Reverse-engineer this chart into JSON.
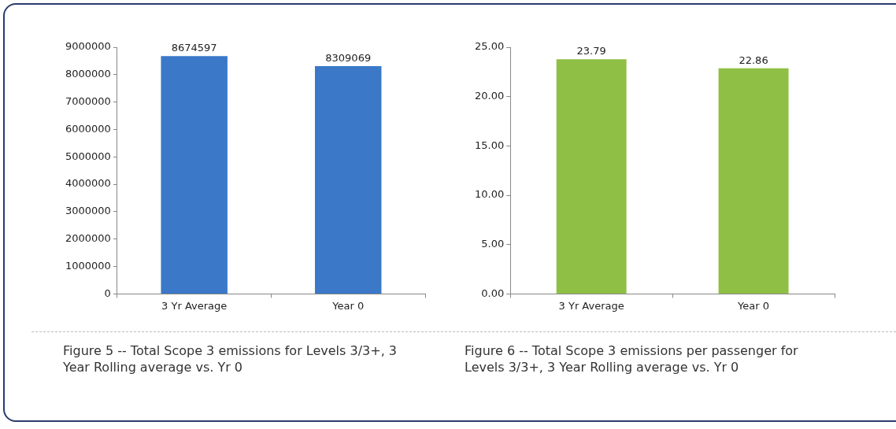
{
  "chart_data": [
    {
      "type": "bar",
      "categories": [
        "3 Yr Average",
        "Year 0"
      ],
      "values": [
        8674597,
        8309069
      ],
      "color": "#3b78c8",
      "ylim": [
        0,
        9000000
      ],
      "yticks": [
        0,
        1000000,
        2000000,
        3000000,
        4000000,
        5000000,
        6000000,
        7000000,
        8000000,
        9000000
      ],
      "data_labels": true,
      "annotations": [
        "Figure 5 -- Total Scope 3 emissions for Levels 3/3+, 3 Year Rolling average vs. Yr 0"
      ]
    },
    {
      "type": "bar",
      "categories": [
        "3 Yr Average",
        "Year 0"
      ],
      "values": [
        23.79,
        22.86
      ],
      "color": "#8fbf45",
      "ylim": [
        0,
        25
      ],
      "yticks": [
        {
          "value": 0,
          "label": "0.00"
        },
        {
          "value": 5,
          "label": "5.00"
        },
        {
          "value": 10,
          "label": "10.00"
        },
        {
          "value": 15,
          "label": "15.00"
        },
        {
          "value": 20,
          "label": "20.00"
        },
        {
          "value": 25,
          "label": "25.00"
        }
      ],
      "data_labels": true,
      "annotations": [
        "Figure 6 -- Total Scope 3 emissions per passenger for Levels 3/3+, 3 Year Rolling average vs. Yr 0"
      ]
    }
  ]
}
